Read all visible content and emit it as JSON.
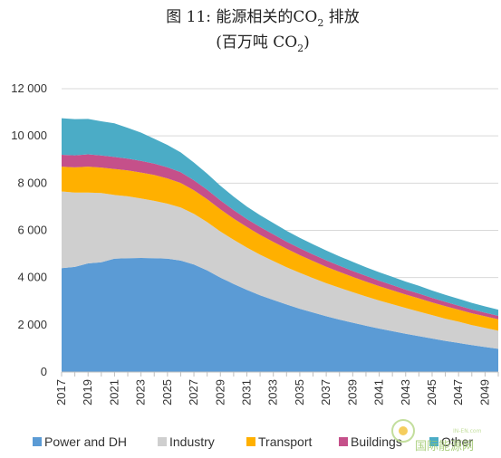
{
  "chart_data": {
    "type": "area",
    "stacked": true,
    "title_line1": "图 11: 能源相关的CO",
    "title_line1_sub": "2",
    "title_line1_tail": " 排放",
    "title_line2": "(百万吨 CO",
    "title_line2_sub": "2",
    "title_line2_tail": ")",
    "ylim": [
      0,
      12000
    ],
    "y_ticks": [
      0,
      2000,
      4000,
      6000,
      8000,
      10000,
      12000
    ],
    "y_tick_labels": [
      "0",
      "2 000",
      "4 000",
      "6 000",
      "8 000",
      "10 000",
      "12 000"
    ],
    "x": [
      2017,
      2018,
      2019,
      2020,
      2021,
      2022,
      2023,
      2024,
      2025,
      2026,
      2027,
      2028,
      2029,
      2030,
      2031,
      2032,
      2033,
      2034,
      2035,
      2036,
      2037,
      2038,
      2039,
      2040,
      2041,
      2042,
      2043,
      2044,
      2045,
      2046,
      2047,
      2048,
      2049,
      2050
    ],
    "x_tick_labels": [
      "2017",
      "2019",
      "2021",
      "2023",
      "2025",
      "2027",
      "2029",
      "2031",
      "2033",
      "2035",
      "2037",
      "2039",
      "2041",
      "2043",
      "2045",
      "2047",
      "2049"
    ],
    "grid": "horizontal",
    "legend_position": "bottom",
    "series": [
      {
        "name": "Power and DH",
        "color": "#5b9bd5",
        "values": [
          4400,
          4450,
          4600,
          4650,
          4800,
          4820,
          4830,
          4820,
          4800,
          4720,
          4550,
          4300,
          4000,
          3730,
          3480,
          3250,
          3050,
          2860,
          2680,
          2520,
          2360,
          2220,
          2090,
          1960,
          1840,
          1730,
          1620,
          1520,
          1420,
          1320,
          1230,
          1140,
          1060,
          980
        ]
      },
      {
        "name": "Industry",
        "color": "#cfcfcf",
        "values": [
          3250,
          3150,
          3000,
          2930,
          2700,
          2620,
          2520,
          2430,
          2330,
          2250,
          2150,
          2050,
          1950,
          1870,
          1790,
          1720,
          1650,
          1580,
          1520,
          1460,
          1400,
          1350,
          1290,
          1240,
          1190,
          1140,
          1090,
          1040,
          990,
          940,
          900,
          850,
          810,
          770
        ]
      },
      {
        "name": "Transport",
        "color": "#ffb000",
        "values": [
          1050,
          1070,
          1100,
          1080,
          1100,
          1100,
          1100,
          1100,
          1070,
          1040,
          1000,
          970,
          940,
          900,
          870,
          840,
          810,
          780,
          750,
          720,
          700,
          670,
          650,
          630,
          610,
          590,
          570,
          560,
          540,
          530,
          510,
          500,
          490,
          480
        ]
      },
      {
        "name": "Buildings",
        "color": "#c5508a",
        "values": [
          500,
          510,
          520,
          510,
          510,
          500,
          490,
          480,
          470,
          450,
          420,
          400,
          380,
          360,
          340,
          330,
          320,
          300,
          290,
          280,
          270,
          260,
          250,
          240,
          230,
          220,
          210,
          200,
          190,
          180,
          170,
          160,
          150,
          150
        ]
      },
      {
        "name": "Other",
        "color": "#4bacc6",
        "values": [
          1550,
          1530,
          1500,
          1450,
          1420,
          1300,
          1200,
          1050,
          950,
          840,
          750,
          680,
          620,
          570,
          530,
          500,
          480,
          460,
          440,
          430,
          420,
          400,
          390,
          370,
          360,
          350,
          340,
          330,
          310,
          300,
          290,
          280,
          270,
          260
        ]
      }
    ]
  },
  "watermark": {
    "main": "国际能源网",
    "small": "IN-EN.com"
  }
}
